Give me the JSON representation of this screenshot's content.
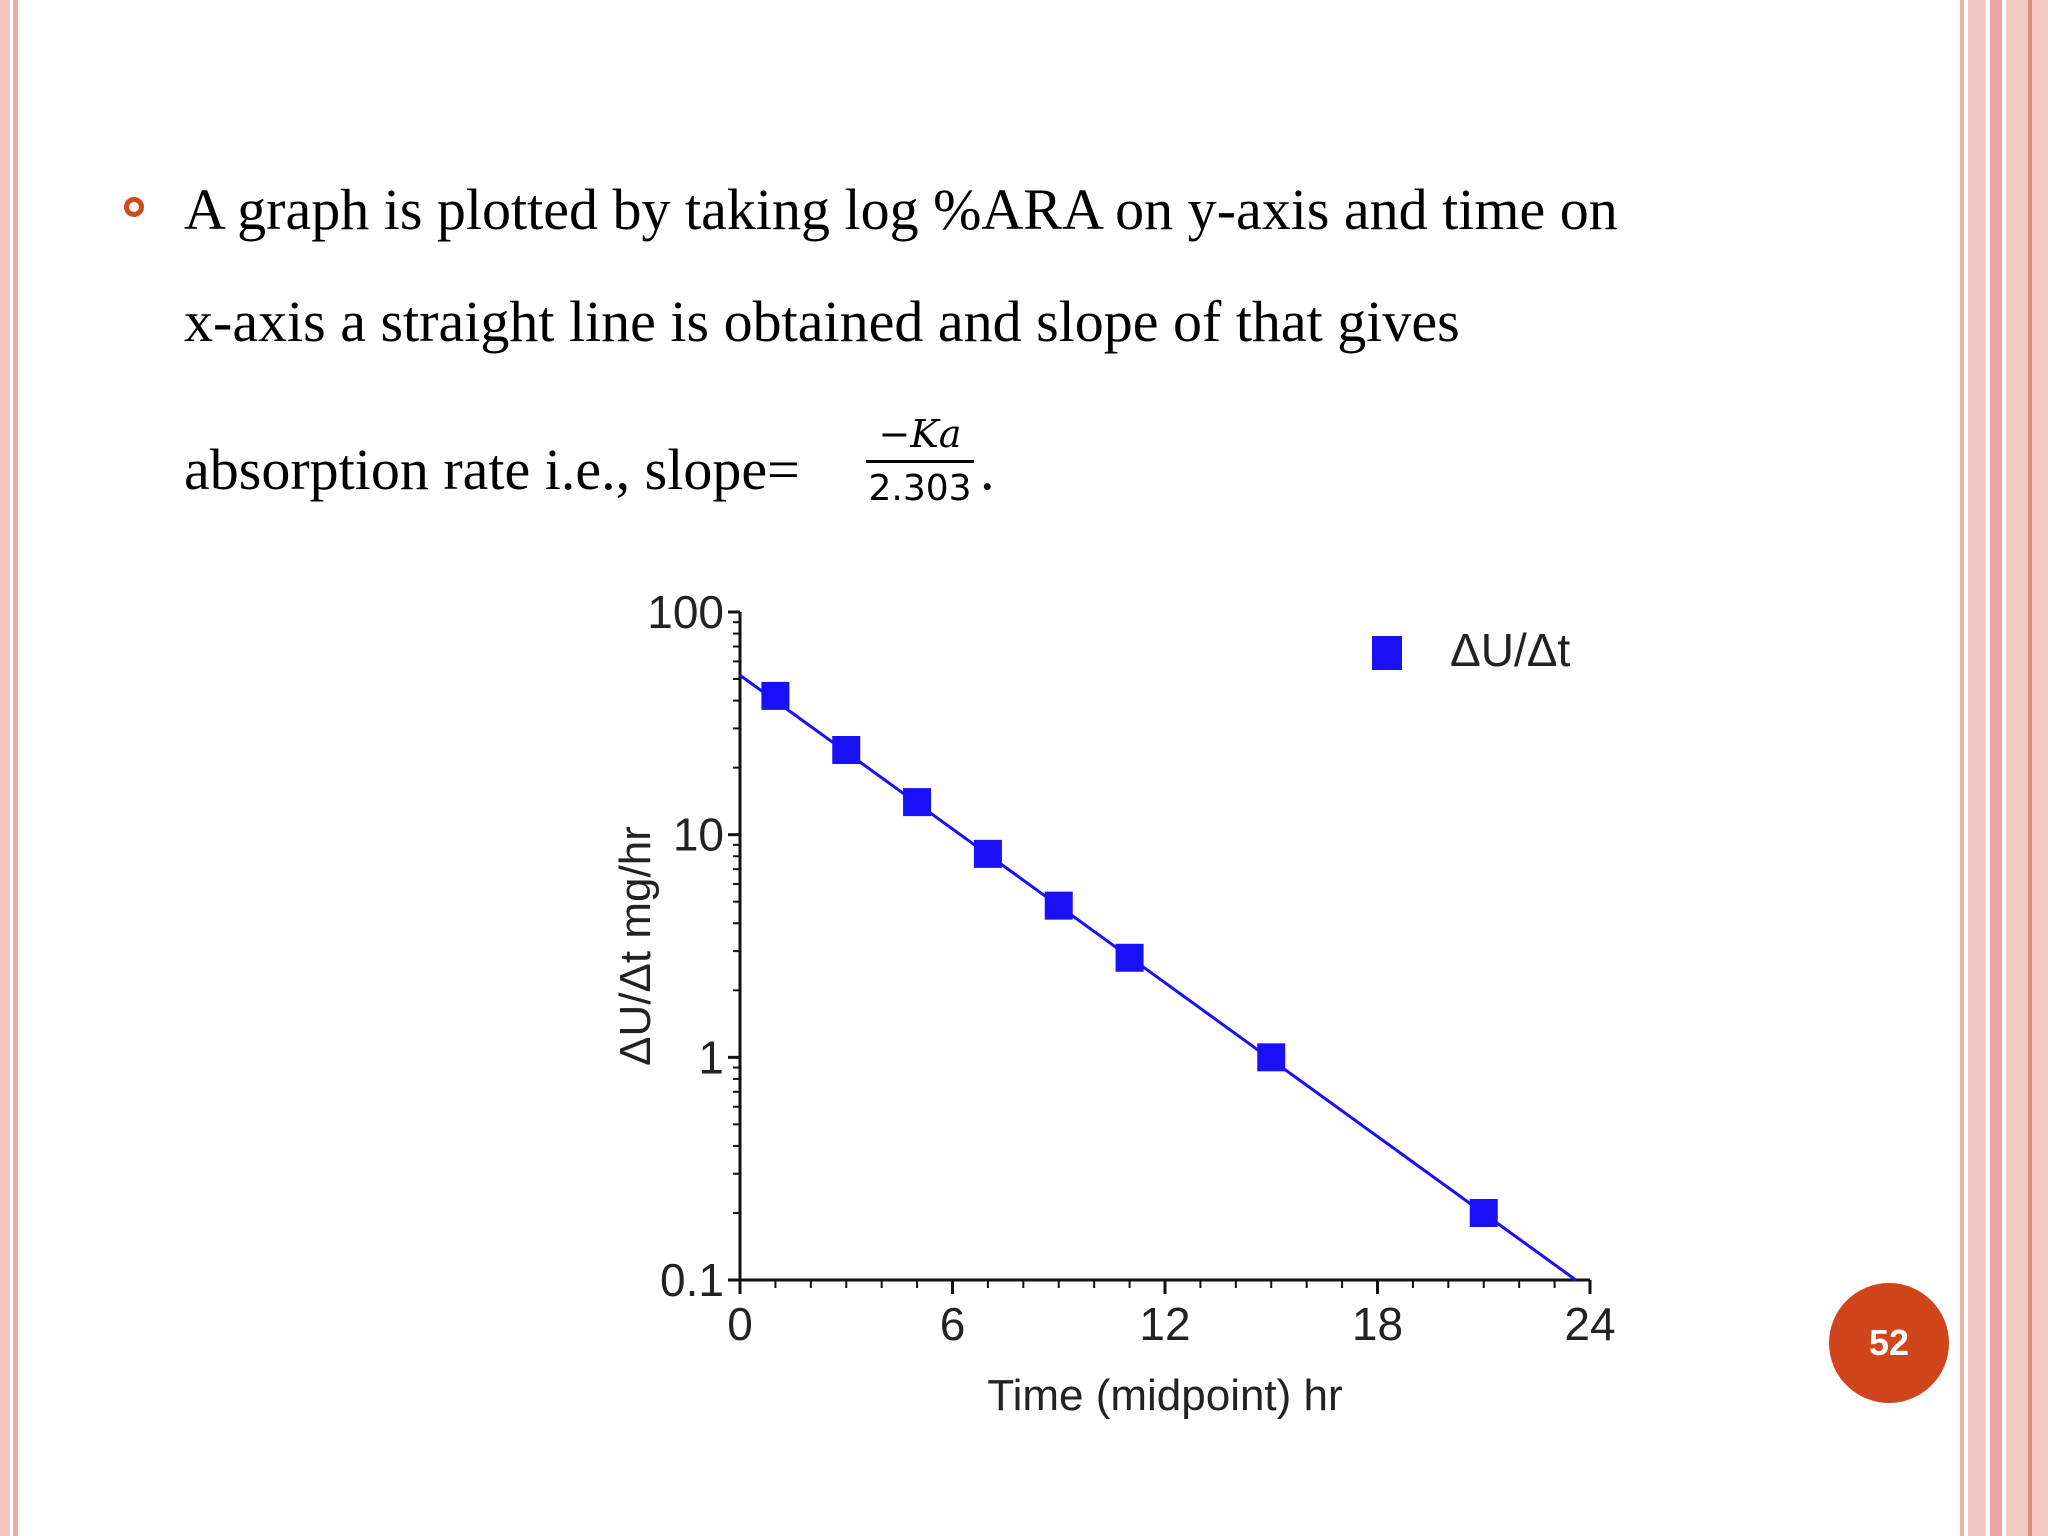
{
  "slide": {
    "line1": "A graph is plotted by taking log %ARA on y-axis and time on",
    "line2": "x-axis a straight line is obtained and slope of that gives",
    "line3_prefix": "absorption rate i.e., slope=",
    "fraction_numerator": "−Ka",
    "fraction_denominator": "2.303",
    "line3_suffix": ".",
    "page_number": "52",
    "accent_color": "#d0451c"
  },
  "chart_data": {
    "type": "scatter",
    "title": "",
    "xlabel": "Time (midpoint) hr",
    "ylabel": "ΔU/Δt mg/hr",
    "xlim": [
      0,
      24
    ],
    "ylim": [
      0.1,
      100
    ],
    "yscale": "log",
    "xticks": [
      0,
      6,
      12,
      18,
      24
    ],
    "yticks": [
      0.1,
      1,
      10,
      100
    ],
    "ytick_labels": [
      "0.1",
      "1",
      "10",
      "100"
    ],
    "grid": false,
    "legend_position": "top-right",
    "series": [
      {
        "name": "ΔU/Δt",
        "color": "#1a10f5",
        "marker": "square",
        "x": [
          1,
          3,
          5,
          7,
          9,
          11,
          15,
          21
        ],
        "y": [
          42,
          24,
          14,
          8.2,
          4.8,
          2.8,
          1.0,
          0.2
        ]
      }
    ],
    "fit_line": {
      "color": "#1a10f5",
      "x": [
        0,
        23.6
      ],
      "y": [
        52,
        0.1
      ]
    }
  }
}
